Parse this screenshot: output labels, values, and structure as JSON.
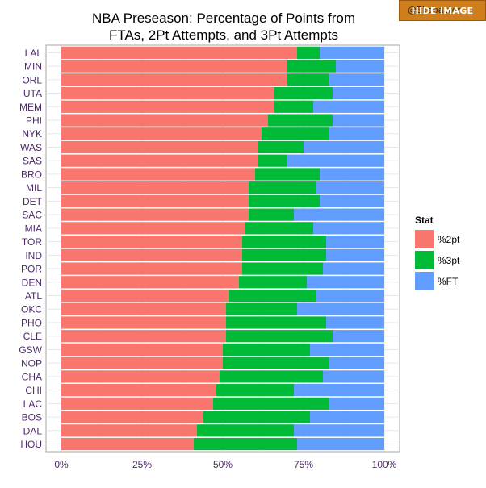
{
  "overlay": {
    "hide_button_label": "HIDE IMAGE",
    "partial_text": "@Ekabaster"
  },
  "chart_data": {
    "type": "bar",
    "orientation": "horizontal",
    "stacked": true,
    "title": "NBA Preseason: Percentage of Points from\nFTAs, 2Pt Attempts, and 3Pt Attempts",
    "xlabel": "",
    "ylabel": "",
    "xlim": [
      0,
      1
    ],
    "x_ticks": [
      0,
      0.25,
      0.5,
      0.75,
      1.0
    ],
    "x_tick_labels": [
      "0%",
      "25%",
      "50%",
      "75%",
      "100%"
    ],
    "grid": true,
    "legend": {
      "title": "Stat",
      "placement": "right"
    },
    "categories": [
      "LAL",
      "MIN",
      "ORL",
      "UTA",
      "MEM",
      "PHI",
      "NYK",
      "WAS",
      "SAS",
      "BRO",
      "MIL",
      "DET",
      "SAC",
      "MIA",
      "TOR",
      "IND",
      "POR",
      "DEN",
      "ATL",
      "OKC",
      "PHO",
      "CLE",
      "GSW",
      "NOP",
      "CHA",
      "CHI",
      "LAC",
      "BOS",
      "DAL",
      "HOU"
    ],
    "series": [
      {
        "name": "%2pt",
        "color": "#f8766d",
        "values": [
          0.73,
          0.7,
          0.7,
          0.66,
          0.66,
          0.64,
          0.62,
          0.61,
          0.61,
          0.6,
          0.58,
          0.58,
          0.58,
          0.57,
          0.56,
          0.56,
          0.56,
          0.55,
          0.52,
          0.51,
          0.51,
          0.51,
          0.5,
          0.5,
          0.49,
          0.48,
          0.47,
          0.44,
          0.42,
          0.41
        ]
      },
      {
        "name": "%3pt",
        "color": "#00ba38",
        "values": [
          0.07,
          0.15,
          0.13,
          0.18,
          0.12,
          0.2,
          0.21,
          0.14,
          0.09,
          0.2,
          0.21,
          0.22,
          0.14,
          0.21,
          0.26,
          0.26,
          0.25,
          0.21,
          0.27,
          0.22,
          0.31,
          0.33,
          0.27,
          0.33,
          0.32,
          0.24,
          0.36,
          0.33,
          0.3,
          0.32
        ]
      },
      {
        "name": "%FT",
        "color": "#619cff",
        "values": [
          0.2,
          0.15,
          0.17,
          0.16,
          0.22,
          0.16,
          0.17,
          0.25,
          0.3,
          0.2,
          0.21,
          0.2,
          0.28,
          0.22,
          0.18,
          0.18,
          0.19,
          0.24,
          0.21,
          0.27,
          0.18,
          0.16,
          0.23,
          0.17,
          0.19,
          0.28,
          0.17,
          0.23,
          0.28,
          0.27
        ]
      }
    ]
  }
}
